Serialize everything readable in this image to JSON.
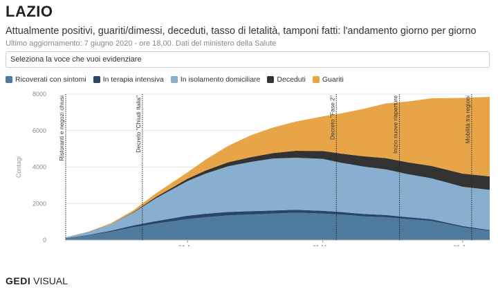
{
  "header": {
    "title": "LAZIO",
    "subtitle": "Attualmente positivi, guariti/dimessi, deceduti, tasso di letalità, tamponi fatti: l'andamento giorno per giorno",
    "updated": "Ultimo aggiornamento: 7 giugno 2020 - ore 18,00. Dati del ministero della Salute"
  },
  "selector": {
    "label": "Seleziona la voce che vuoi evidenziare"
  },
  "footer": {
    "brand": "GEDI",
    "suffix": " VISUAL"
  },
  "chart_data": {
    "type": "area",
    "stacked": true,
    "ylabel": "Contagi",
    "ylim": [
      0,
      8000
    ],
    "y_ticks": [
      0,
      2000,
      4000,
      6000,
      8000
    ],
    "x_ticks": [
      {
        "date": "2020-04-01",
        "label": "01 Apr"
      },
      {
        "date": "2020-05-01",
        "label": "01 May"
      },
      {
        "date": "2020-06-01",
        "label": "01 Jun"
      }
    ],
    "x": [
      "2020-03-05",
      "2020-03-10",
      "2020-03-15",
      "2020-03-20",
      "2020-03-25",
      "2020-04-01",
      "2020-04-05",
      "2020-04-10",
      "2020-04-15",
      "2020-04-20",
      "2020-04-25",
      "2020-05-01",
      "2020-05-05",
      "2020-05-10",
      "2020-05-15",
      "2020-05-20",
      "2020-05-25",
      "2020-06-01",
      "2020-06-07"
    ],
    "series": [
      {
        "name": "Ricoverati con sintomi",
        "color": "#4d7a9d",
        "values": [
          100,
          250,
          450,
          700,
          900,
          1150,
          1250,
          1350,
          1400,
          1450,
          1500,
          1450,
          1400,
          1300,
          1250,
          1150,
          1050,
          700,
          500
        ]
      },
      {
        "name": "In terapia intensiva",
        "color": "#27466a",
        "values": [
          10,
          30,
          60,
          100,
          140,
          180,
          190,
          190,
          180,
          170,
          160,
          150,
          140,
          130,
          120,
          100,
          90,
          70,
          50
        ]
      },
      {
        "name": "In isolamento domiciliare",
        "color": "#88afd0",
        "values": [
          40,
          150,
          350,
          700,
          1250,
          1900,
          2200,
          2500,
          2700,
          2850,
          2850,
          2850,
          2700,
          2600,
          2500,
          2350,
          2250,
          2150,
          2200
        ]
      },
      {
        "name": "Deceduti",
        "color": "#333333",
        "values": [
          1,
          5,
          10,
          30,
          70,
          130,
          170,
          220,
          260,
          300,
          380,
          430,
          500,
          560,
          620,
          650,
          680,
          720,
          740
        ]
      },
      {
        "name": "Guariti",
        "color": "#e7a548",
        "values": [
          5,
          20,
          50,
          100,
          200,
          350,
          600,
          900,
          1200,
          1400,
          1600,
          1900,
          2200,
          2600,
          3000,
          3350,
          3700,
          4150,
          4360
        ]
      }
    ],
    "events": [
      {
        "date": "2020-03-05",
        "label": "Ristoranti e negozi chiusi"
      },
      {
        "date": "2020-03-22",
        "label": "Decreto \"Chiudi Italia\""
      },
      {
        "date": "2020-05-04",
        "label": "Decreto \"Fase 2\""
      },
      {
        "date": "2020-05-18",
        "label": "Inizio nuove riaperture"
      },
      {
        "date": "2020-06-03",
        "label": "Mobilità tra regioni"
      }
    ],
    "grid": true,
    "legend_position": "top-left"
  }
}
